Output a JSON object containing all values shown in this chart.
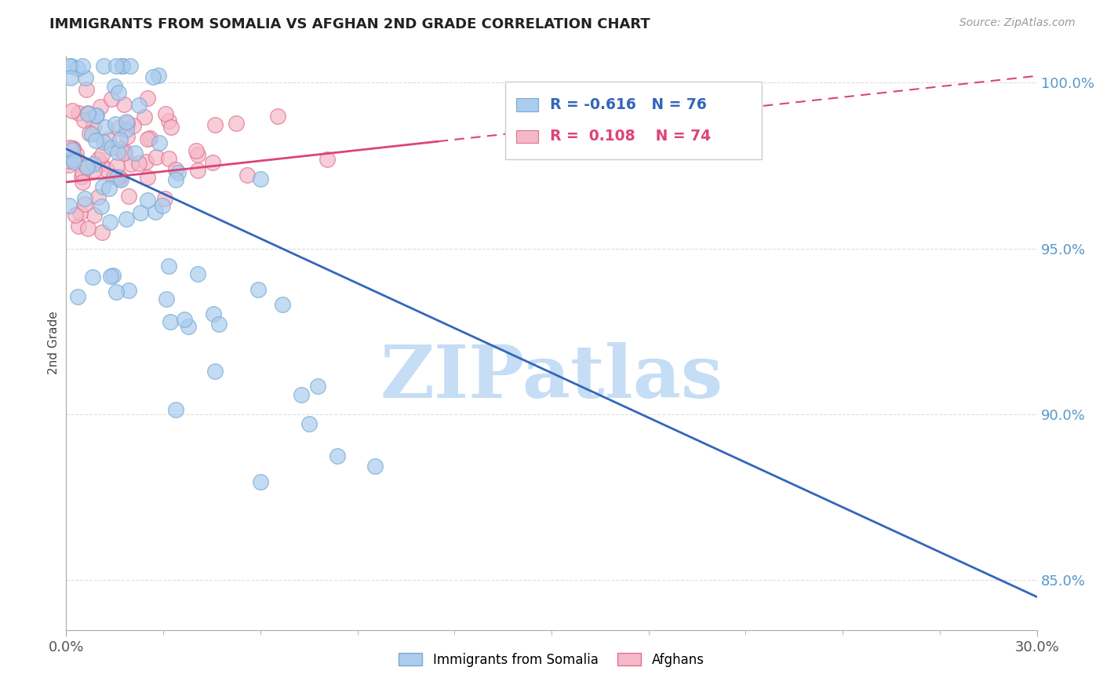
{
  "title": "IMMIGRANTS FROM SOMALIA VS AFGHAN 2ND GRADE CORRELATION CHART",
  "source_text": "Source: ZipAtlas.com",
  "ylabel": "2nd Grade",
  "xlim": [
    0.0,
    0.3
  ],
  "ylim": [
    0.835,
    1.008
  ],
  "x_tick_labels": [
    "0.0%",
    "30.0%"
  ],
  "y_ticks": [
    0.85,
    0.9,
    0.95,
    1.0
  ],
  "y_tick_labels": [
    "85.0%",
    "90.0%",
    "95.0%",
    "100.0%"
  ],
  "series1_label": "Immigrants from Somalia",
  "series1_color": "#aaccee",
  "series1_edge_color": "#7aaad0",
  "series1_R": "-0.616",
  "series1_N": "76",
  "series2_label": "Afghans",
  "series2_color": "#f5b8c8",
  "series2_edge_color": "#e07090",
  "series2_R": "0.108",
  "series2_N": "74",
  "trendline1_color": "#3366bb",
  "trendline2_color": "#dd4477",
  "trendline2_dashed_color": "#dd4477",
  "watermark": "ZIPatlas",
  "watermark_color": "#c5ddf5",
  "legend_R_color1": "#3366bb",
  "legend_R_color2": "#dd4477",
  "grid_color": "#dddddd",
  "spine_color": "#aaaaaa",
  "ytick_color": "#5599cc",
  "xtick_color": "#555555"
}
